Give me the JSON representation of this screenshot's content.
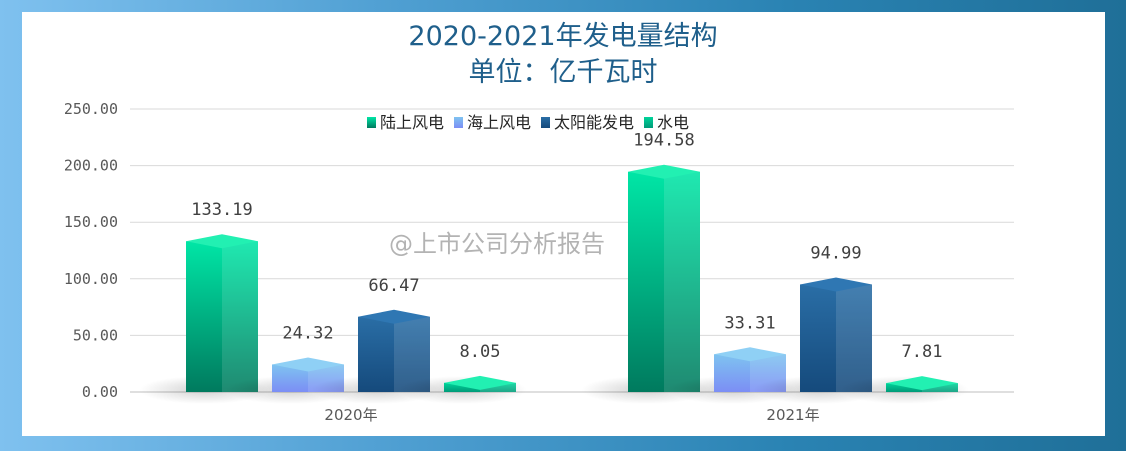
{
  "chart_data": {
    "type": "bar",
    "title": "2020-2021年发电量结构",
    "subtitle": "单位：亿千瓦时",
    "categories": [
      "2020年",
      "2021年"
    ],
    "series": [
      {
        "name": "陆上风电",
        "values": [
          133.19,
          194.58
        ],
        "color": "#00c896"
      },
      {
        "name": "海上风电",
        "values": [
          24.32,
          33.31
        ],
        "color": "#6fa8f5"
      },
      {
        "name": "太阳能发电",
        "values": [
          66.47,
          94.99
        ],
        "color": "#1f5b8e"
      },
      {
        "name": "水电",
        "values": [
          8.05,
          7.81
        ],
        "color": "#00b387"
      }
    ],
    "data_labels": [
      [
        "133.19",
        "194.58"
      ],
      [
        "24.32",
        "33.31"
      ],
      [
        "66.47",
        "94.99"
      ],
      [
        "8.05",
        "7.81"
      ]
    ],
    "y_ticks": [
      "0.00",
      "50.00",
      "100.00",
      "150.00",
      "200.00",
      "250.00"
    ],
    "ylim": [
      0,
      250
    ],
    "grid": true,
    "legend_position": "top-center"
  },
  "watermark": "@上市公司分析报告"
}
